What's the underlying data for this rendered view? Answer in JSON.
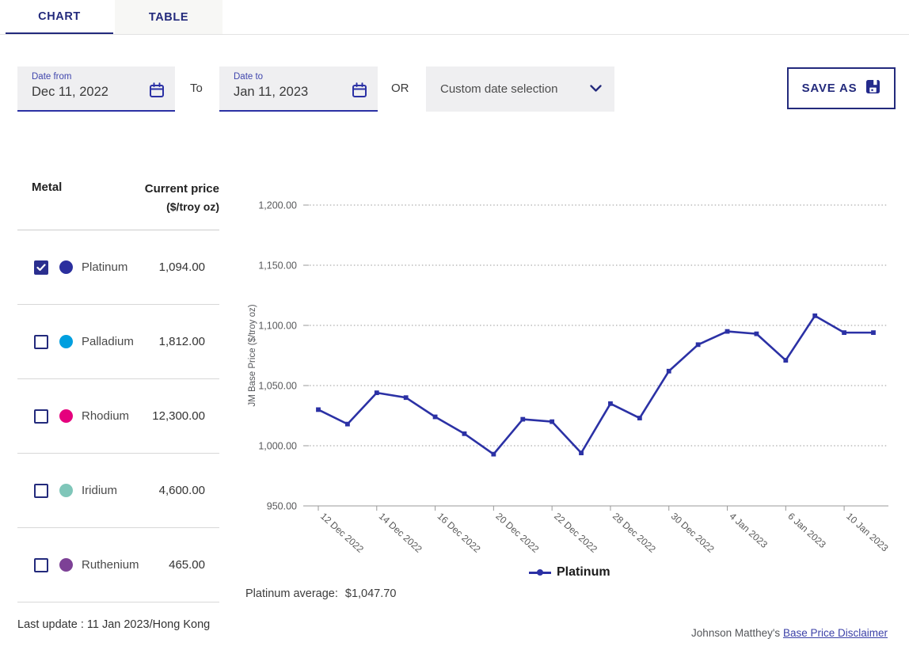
{
  "tabs": {
    "chart": "CHART",
    "table": "TABLE"
  },
  "controls": {
    "date_from": {
      "label": "Date from",
      "value": "Dec 11, 2022"
    },
    "to_label": "To",
    "date_to": {
      "label": "Date to",
      "value": "Jan 11, 2023"
    },
    "or_label": "OR",
    "preset_dropdown": {
      "value": "Custom date selection"
    },
    "save_as_label": "SAVE AS"
  },
  "metals_table": {
    "headers": {
      "metal": "Metal",
      "price_line1": "Current price",
      "price_line2": "($/troy oz)"
    },
    "rows": [
      {
        "name": "Platinum",
        "price": "1,094.00",
        "checked": true,
        "color": "#2b2f9e"
      },
      {
        "name": "Palladium",
        "price": "1,812.00",
        "checked": false,
        "color": "#009fdf"
      },
      {
        "name": "Rhodium",
        "price": "12,300.00",
        "checked": false,
        "color": "#e5007d"
      },
      {
        "name": "Iridium",
        "price": "4,600.00",
        "checked": false,
        "color": "#7fc6b9"
      },
      {
        "name": "Ruthenium",
        "price": "465.00",
        "checked": false,
        "color": "#7d4196"
      }
    ],
    "last_update": "Last update : 11 Jan 2023/Hong Kong"
  },
  "chart_data": {
    "type": "line",
    "ylabel": "JM Base Price ($/troy oz)",
    "ylim": [
      950,
      1200
    ],
    "ytick_step": 50,
    "ytick_labels": [
      "950.00",
      "1,000.00",
      "1,050.00",
      "1,100.00",
      "1,150.00",
      "1,200.00"
    ],
    "x": [
      "12 Dec 2022",
      "13 Dec 2022",
      "14 Dec 2022",
      "15 Dec 2022",
      "16 Dec 2022",
      "19 Dec 2022",
      "20 Dec 2022",
      "21 Dec 2022",
      "22 Dec 2022",
      "23 Dec 2022",
      "28 Dec 2022",
      "29 Dec 2022",
      "30 Dec 2022",
      "3 Jan 2023",
      "4 Jan 2023",
      "5 Jan 2023",
      "6 Jan 2023",
      "9 Jan 2023",
      "10 Jan 2023",
      "11 Jan 2023"
    ],
    "xtick_label_every": 2,
    "grid": "dotted-horizontal",
    "legend_position": "bottom-center",
    "series": [
      {
        "name": "Platinum",
        "color": "#2b31a5",
        "values": [
          1030,
          1018,
          1044,
          1040,
          1024,
          1010,
          993,
          1022,
          1020,
          994,
          1035,
          1023,
          1062,
          1084,
          1095,
          1093,
          1071,
          1108,
          1094,
          1094
        ]
      }
    ]
  },
  "summary": {
    "average_label": "Platinum average:",
    "average_value": "$1,047.70"
  },
  "footer": {
    "prefix": "Johnson Matthey's",
    "link": "Base Price Disclaimer"
  },
  "colors": {
    "accent_navy": "#232a7c",
    "line_blue": "#2b31a5",
    "grid_gray": "#9a9a9a"
  }
}
